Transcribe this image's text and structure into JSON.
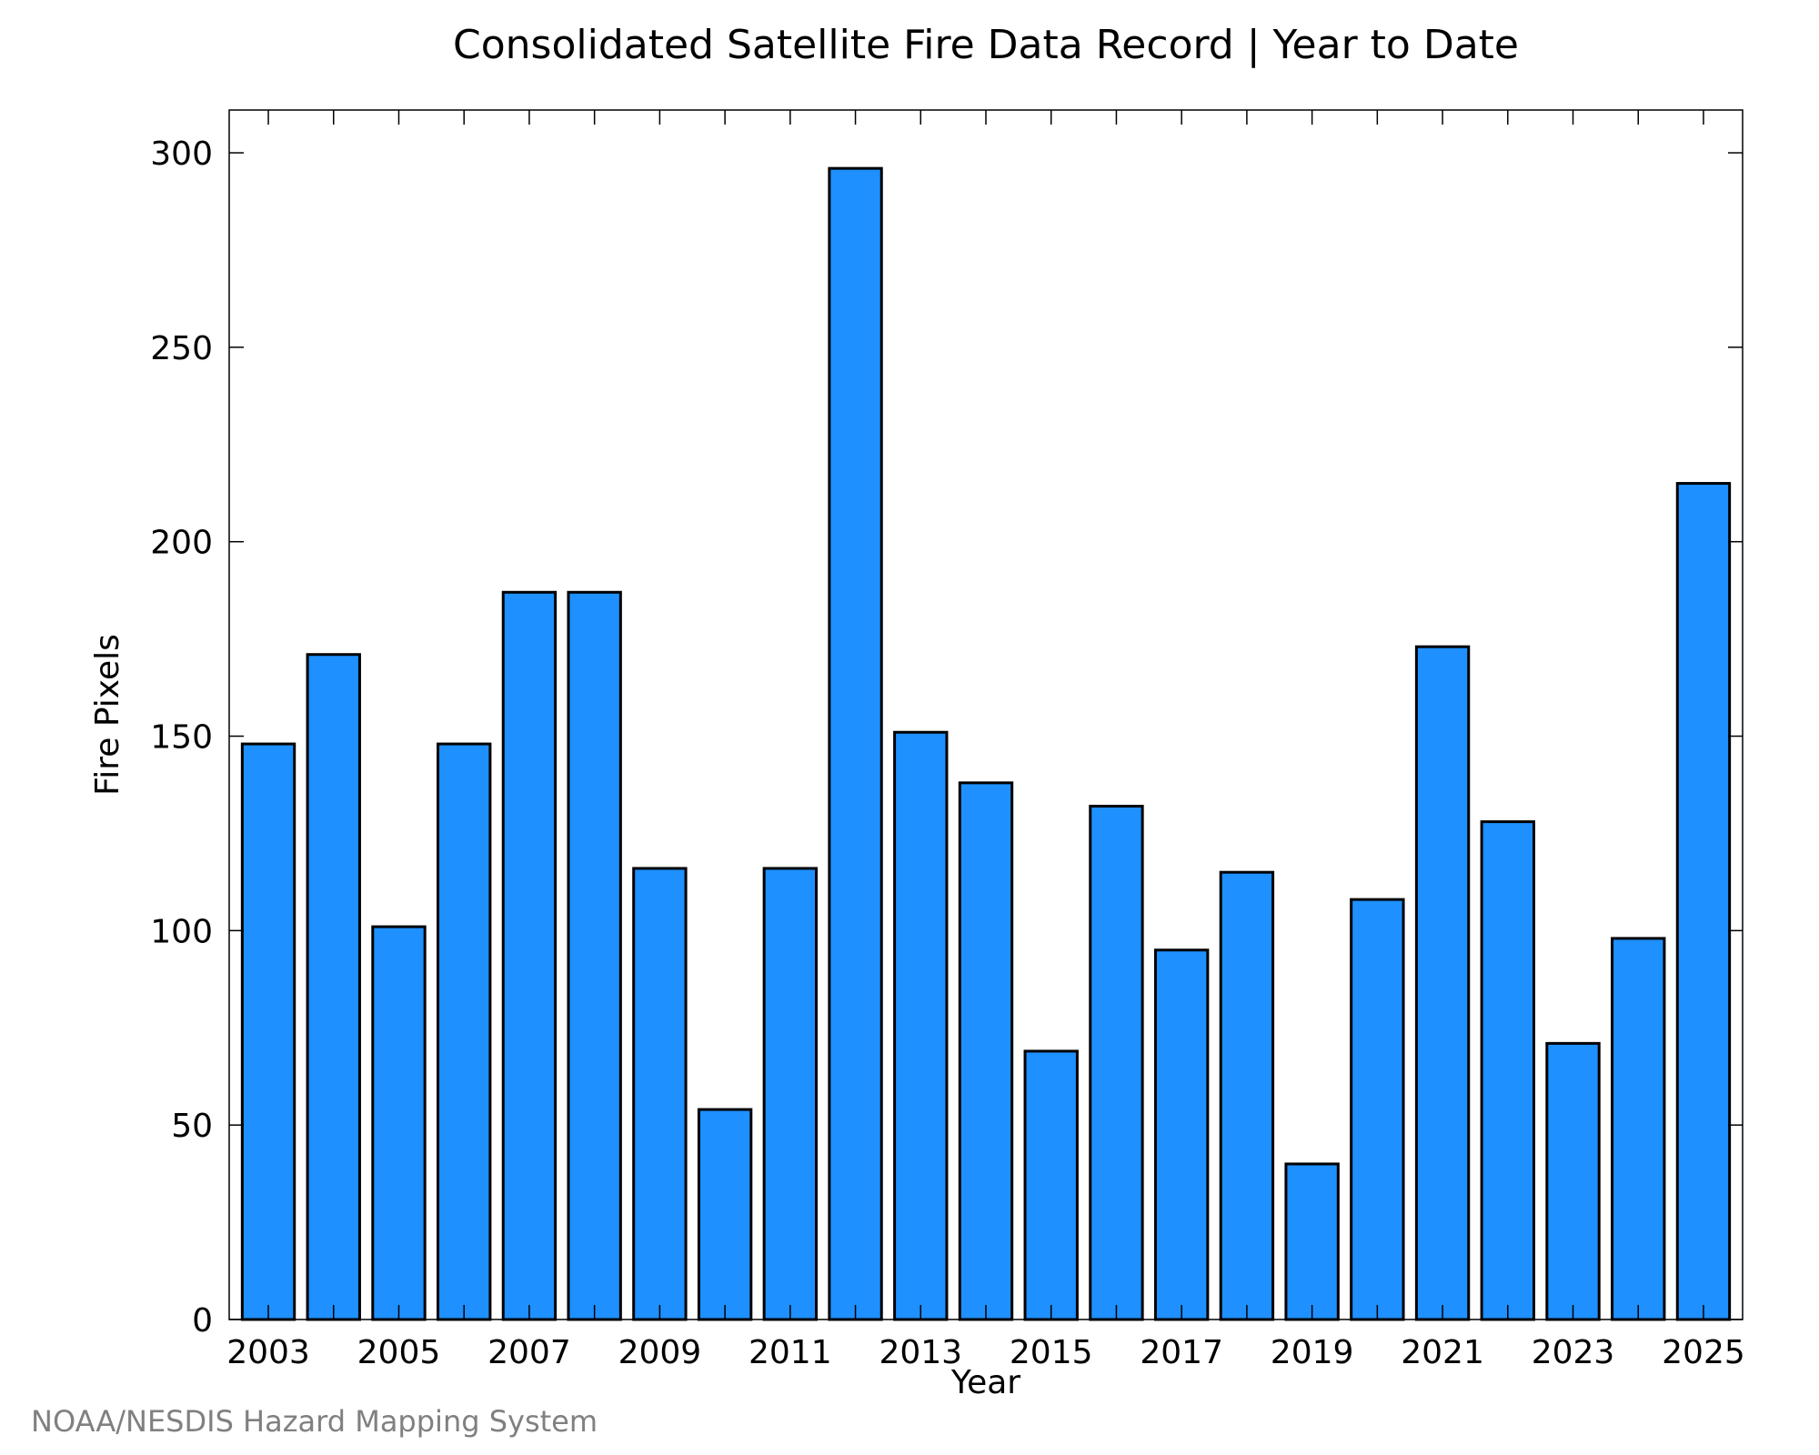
{
  "chart_data": {
    "type": "bar",
    "title": "Consolidated Satellite Fire Data Record | Year to Date",
    "xlabel": "Year",
    "ylabel": "Fire Pixels",
    "categories": [
      2003,
      2004,
      2005,
      2006,
      2007,
      2008,
      2009,
      2010,
      2011,
      2012,
      2013,
      2014,
      2015,
      2016,
      2017,
      2018,
      2019,
      2020,
      2021,
      2022,
      2023,
      2024,
      2025
    ],
    "values": [
      148,
      171,
      101,
      148,
      187,
      187,
      116,
      54,
      116,
      296,
      151,
      138,
      69,
      132,
      95,
      115,
      40,
      108,
      173,
      128,
      71,
      98,
      215
    ],
    "xtick_labels": [
      "2003",
      "2005",
      "2007",
      "2009",
      "2011",
      "2013",
      "2015",
      "2017",
      "2019",
      "2021",
      "2023",
      "2025"
    ],
    "ytick_labels": [
      "0",
      "50",
      "100",
      "150",
      "200",
      "250",
      "300"
    ],
    "ylim": [
      0,
      311
    ],
    "bar_color": "#1e90ff",
    "grid": false,
    "legend": "none"
  },
  "footer": {
    "source": "NOAA/NESDIS Hazard Mapping System"
  }
}
